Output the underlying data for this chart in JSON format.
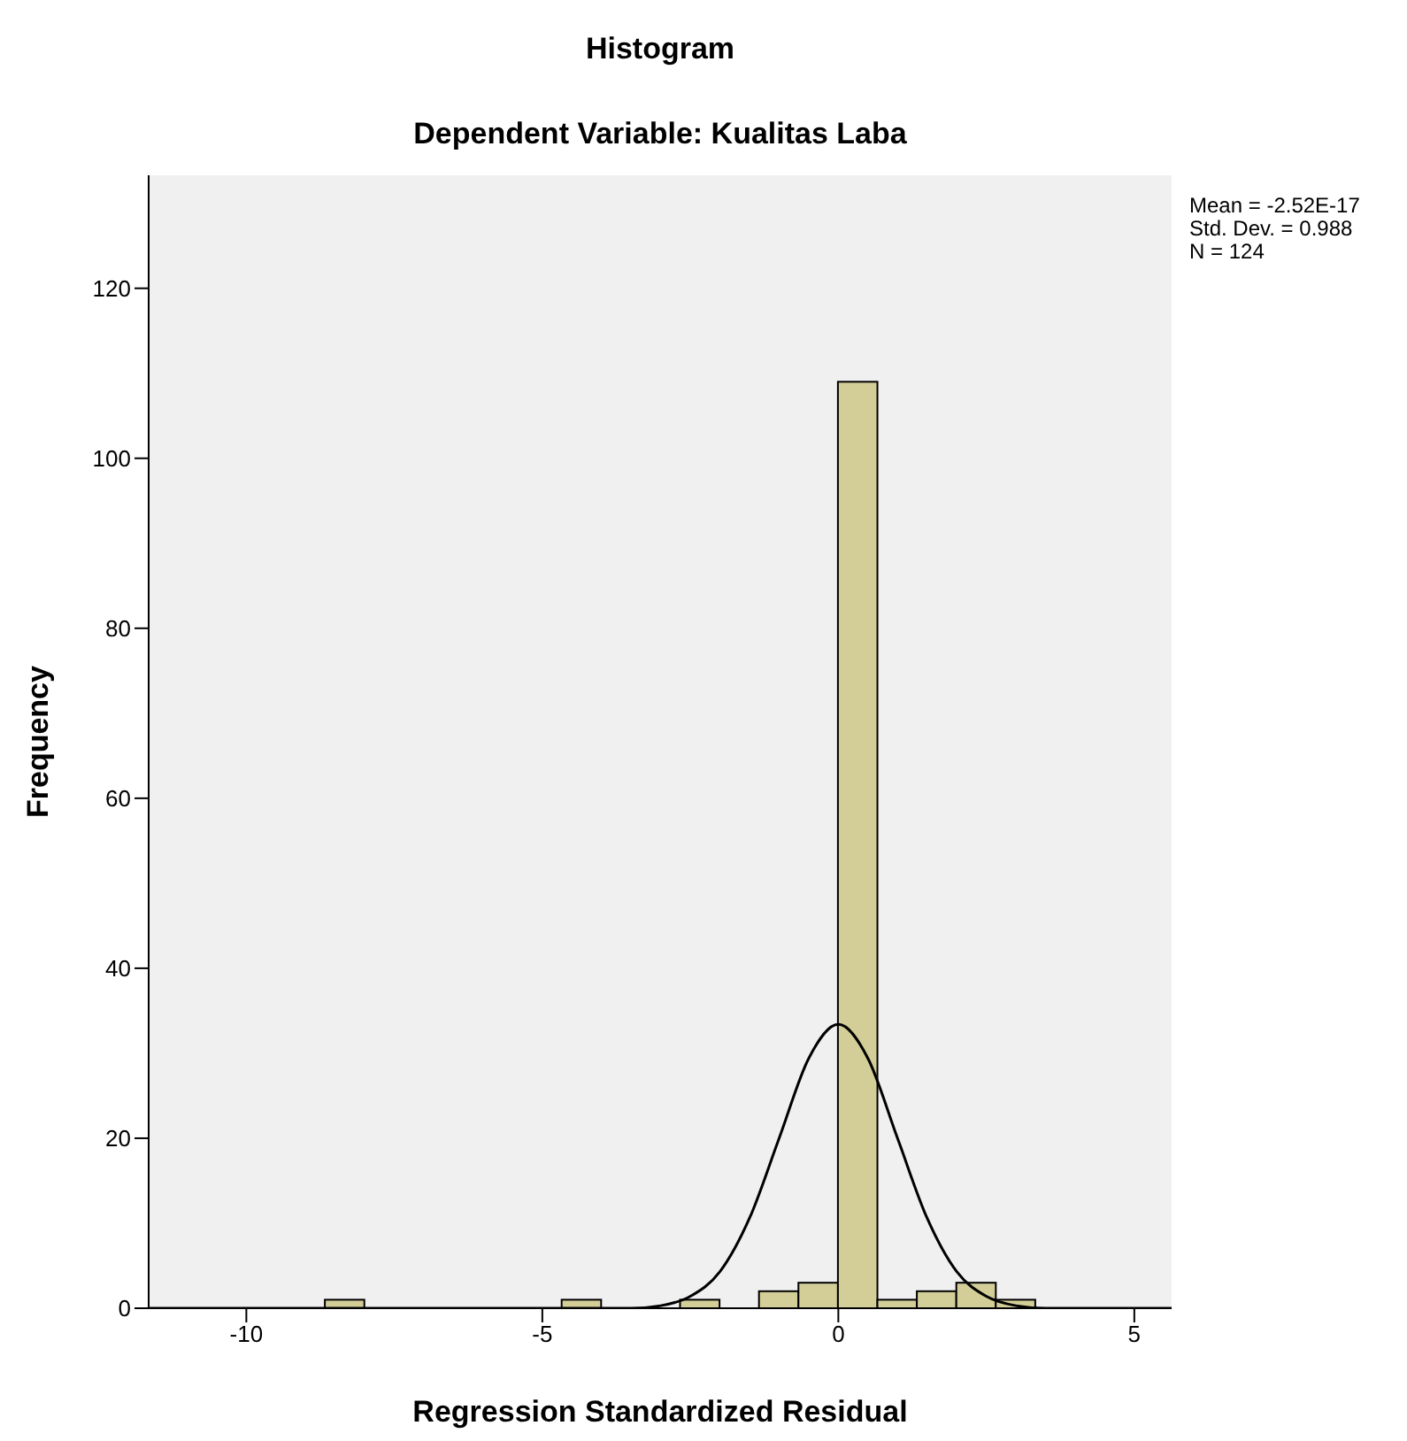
{
  "chart_data": {
    "type": "histogram",
    "title": "Histogram",
    "subtitle": "Dependent Variable: Kualitas Laba",
    "xlabel": "Regression Standardized Residual",
    "ylabel": "Frequency",
    "bins": [
      -8.667,
      -8,
      -7.333,
      -6.667,
      -6,
      -5.333,
      -4.667,
      -4,
      -3.333,
      -2.667,
      -2,
      -1.333,
      -0.667,
      0,
      0.667,
      1.333,
      2,
      2.667,
      3.333
    ],
    "values": [
      1,
      0,
      0,
      0,
      0,
      0,
      1,
      0,
      0,
      1,
      0,
      2,
      3,
      109,
      1,
      2,
      3,
      1
    ],
    "color": "#d3ce97",
    "series": [
      {
        "type": "line",
        "color": "#000000",
        "x": [
          -11.65,
          -4,
          -3.5,
          -3,
          -2.5,
          -2,
          -1.5,
          -1,
          -0.5,
          0,
          0.5,
          1,
          1.5,
          2,
          2.5,
          3,
          3.5,
          4,
          5.63
        ],
        "values": [
          0,
          0,
          0,
          0.3,
          1.4,
          4.3,
          10.6,
          20,
          29.4,
          33.4,
          29.4,
          20,
          10.6,
          4.3,
          1.4,
          0.3,
          0,
          0,
          0
        ]
      }
    ],
    "xlim": [
      -11.65,
      5.63
    ],
    "xticks": [
      -10,
      -5,
      0,
      5
    ],
    "ylim": [
      0,
      133.3
    ],
    "yticks": [
      0,
      20,
      40,
      60,
      80,
      100,
      120
    ],
    "annotations": [
      "Mean = -2.52E-17",
      "Std. Dev. = 0.988",
      "N = 124"
    ]
  }
}
